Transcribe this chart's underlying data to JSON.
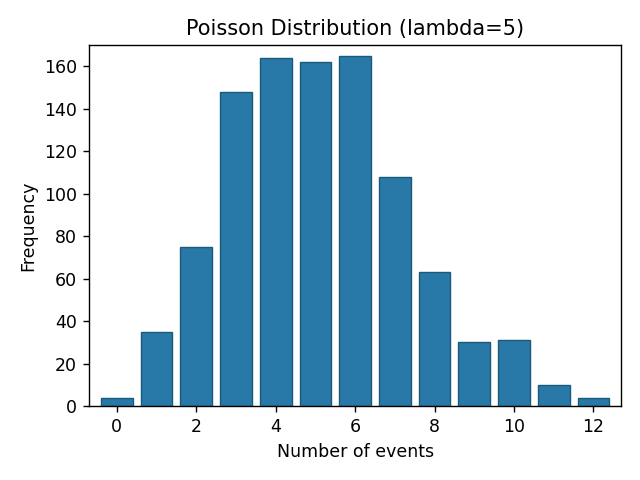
{
  "title": "Poisson Distribution (lambda=5)",
  "xlabel": "Number of events",
  "ylabel": "Frequency",
  "categories": [
    0,
    1,
    2,
    3,
    4,
    5,
    6,
    7,
    8,
    9,
    10,
    11,
    12
  ],
  "values": [
    4,
    35,
    75,
    148,
    164,
    162,
    165,
    108,
    63,
    30,
    31,
    10,
    4
  ],
  "bar_color": "#2878a8",
  "bar_edge_color": "#1a5a7a",
  "bar_width": 0.8,
  "ylim": [
    0,
    170
  ],
  "yticks": [
    0,
    20,
    40,
    60,
    80,
    100,
    120,
    140,
    160
  ],
  "xticks": [
    0,
    2,
    4,
    6,
    8,
    10,
    12
  ],
  "figsize": [
    5.12,
    3.84
  ],
  "dpi": 125
}
